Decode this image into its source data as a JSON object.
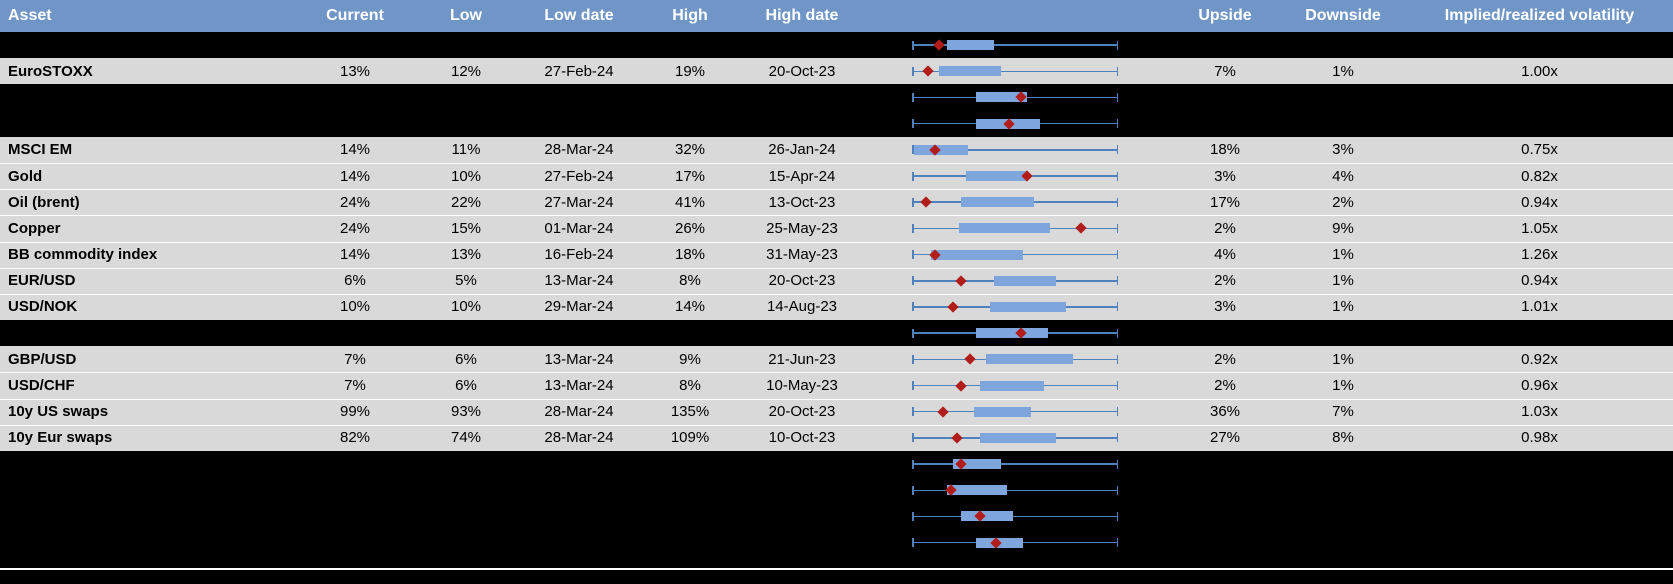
{
  "chart_data": {
    "type": "table",
    "columns": [
      "Asset",
      "Current",
      "Low",
      "Low date",
      "High",
      "High date",
      "Upside",
      "Downside",
      "Implied/realized volatility"
    ],
    "boxplot_axis_range": [
      0,
      1
    ],
    "rows": [
      {
        "type": "spacer",
        "boxplot": {
          "lo": 0.17,
          "hi": 0.4,
          "marker": 0.13
        }
      },
      {
        "type": "data",
        "asset": "EuroSTOXX",
        "current": "13%",
        "low": "12%",
        "low_date": "27-Feb-24",
        "high": "19%",
        "high_date": "20-Oct-23",
        "upside": "7%",
        "downside": "1%",
        "ivrv": "1.00x",
        "boxplot": {
          "lo": 0.13,
          "hi": 0.43,
          "marker": 0.08
        }
      },
      {
        "type": "spacer",
        "boxplot": {
          "lo": 0.31,
          "hi": 0.56,
          "marker": 0.53
        }
      },
      {
        "type": "spacer",
        "boxplot": {
          "lo": 0.31,
          "hi": 0.62,
          "marker": 0.47
        }
      },
      {
        "type": "data",
        "asset": "MSCI EM",
        "current": "14%",
        "low": "11%",
        "low_date": "28-Mar-24",
        "high": "32%",
        "high_date": "26-Jan-24",
        "upside": "18%",
        "downside": "3%",
        "ivrv": "0.75x",
        "boxplot": {
          "lo": 0.01,
          "hi": 0.27,
          "marker": 0.11
        }
      },
      {
        "type": "data",
        "asset": "Gold",
        "current": "14%",
        "low": "10%",
        "low_date": "27-Feb-24",
        "high": "17%",
        "high_date": "15-Apr-24",
        "upside": "3%",
        "downside": "4%",
        "ivrv": "0.82x",
        "boxplot": {
          "lo": 0.26,
          "hi": 0.56,
          "marker": 0.56
        }
      },
      {
        "type": "data",
        "asset": "Oil (brent)",
        "current": "24%",
        "low": "22%",
        "low_date": "27-Mar-24",
        "high": "41%",
        "high_date": "13-Oct-23",
        "upside": "17%",
        "downside": "2%",
        "ivrv": "0.94x",
        "boxplot": {
          "lo": 0.24,
          "hi": 0.59,
          "marker": 0.07
        }
      },
      {
        "type": "data",
        "asset": "Copper",
        "current": "24%",
        "low": "15%",
        "low_date": "01-Mar-24",
        "high": "26%",
        "high_date": "25-May-23",
        "upside": "2%",
        "downside": "9%",
        "ivrv": "1.05x",
        "boxplot": {
          "lo": 0.23,
          "hi": 0.67,
          "marker": 0.82
        }
      },
      {
        "type": "data",
        "asset": "BB commodity index",
        "current": "14%",
        "low": "13%",
        "low_date": "16-Feb-24",
        "high": "18%",
        "high_date": "31-May-23",
        "upside": "4%",
        "downside": "1%",
        "ivrv": "1.26x",
        "boxplot": {
          "lo": 0.09,
          "hi": 0.54,
          "marker": 0.11
        }
      },
      {
        "type": "data",
        "asset": "EUR/USD",
        "current": "6%",
        "low": "5%",
        "low_date": "13-Mar-24",
        "high": "8%",
        "high_date": "20-Oct-23",
        "upside": "2%",
        "downside": "1%",
        "ivrv": "0.94x",
        "boxplot": {
          "lo": 0.4,
          "hi": 0.7,
          "marker": 0.24
        }
      },
      {
        "type": "data",
        "asset": "USD/NOK",
        "current": "10%",
        "low": "10%",
        "low_date": "29-Mar-24",
        "high": "14%",
        "high_date": "14-Aug-23",
        "upside": "3%",
        "downside": "1%",
        "ivrv": "1.01x",
        "boxplot": {
          "lo": 0.38,
          "hi": 0.75,
          "marker": 0.2
        }
      },
      {
        "type": "spacer",
        "boxplot": {
          "lo": 0.31,
          "hi": 0.66,
          "marker": 0.53
        }
      },
      {
        "type": "data",
        "asset": "GBP/USD",
        "current": "7%",
        "low": "6%",
        "low_date": "13-Mar-24",
        "high": "9%",
        "high_date": "21-Jun-23",
        "upside": "2%",
        "downside": "1%",
        "ivrv": "0.92x",
        "boxplot": {
          "lo": 0.36,
          "hi": 0.78,
          "marker": 0.28
        }
      },
      {
        "type": "data",
        "asset": "USD/CHF",
        "current": "7%",
        "low": "6%",
        "low_date": "13-Mar-24",
        "high": "8%",
        "high_date": "10-May-23",
        "upside": "2%",
        "downside": "1%",
        "ivrv": "0.96x",
        "boxplot": {
          "lo": 0.33,
          "hi": 0.64,
          "marker": 0.24
        }
      },
      {
        "type": "data",
        "asset": "10y US swaps",
        "current": "99%",
        "low": "93%",
        "low_date": "28-Mar-24",
        "high": "135%",
        "high_date": "20-Oct-23",
        "upside": "36%",
        "downside": "7%",
        "ivrv": "1.03x",
        "boxplot": {
          "lo": 0.3,
          "hi": 0.58,
          "marker": 0.15
        }
      },
      {
        "type": "data",
        "asset": "10y Eur swaps",
        "current": "82%",
        "low": "74%",
        "low_date": "28-Mar-24",
        "high": "109%",
        "high_date": "10-Oct-23",
        "upside": "27%",
        "downside": "8%",
        "ivrv": "0.98x",
        "boxplot": {
          "lo": 0.33,
          "hi": 0.7,
          "marker": 0.22
        }
      },
      {
        "type": "spacer",
        "boxplot": {
          "lo": 0.2,
          "hi": 0.43,
          "marker": 0.24
        }
      },
      {
        "type": "spacer",
        "boxplot": {
          "lo": 0.17,
          "hi": 0.46,
          "marker": 0.19
        }
      },
      {
        "type": "spacer",
        "boxplot": {
          "lo": 0.24,
          "hi": 0.49,
          "marker": 0.33
        }
      },
      {
        "type": "spacer",
        "boxplot": {
          "lo": 0.31,
          "hi": 0.54,
          "marker": 0.41
        }
      }
    ]
  },
  "colors": {
    "header_bg": "#7096C8",
    "header_text": "#FFFFFF",
    "data_row_bg": "#D9D9D9",
    "spacer_bg": "#000000",
    "box_fill": "#7EA6DC",
    "whisker": "#4F81BD",
    "marker": "#B01D1A"
  }
}
